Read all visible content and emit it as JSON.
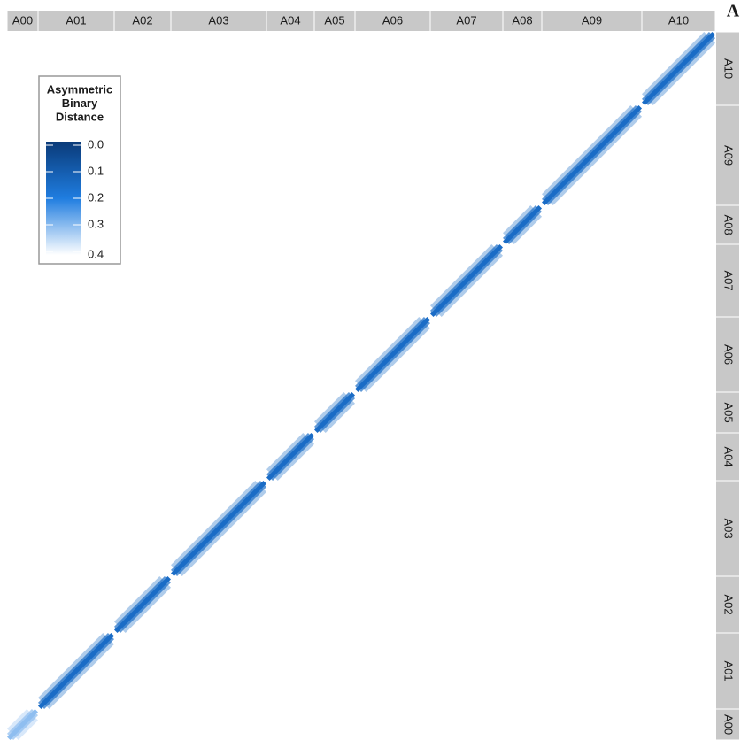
{
  "chart_data": {
    "type": "heatmap",
    "panel_label": "A",
    "groups": [
      "A00",
      "A01",
      "A02",
      "A03",
      "A04",
      "A05",
      "A06",
      "A07",
      "A08",
      "A09",
      "A10"
    ],
    "group_sizes": [
      35,
      86,
      64,
      108,
      54,
      46,
      85,
      82,
      44,
      113,
      83
    ],
    "values": [
      [
        0.3,
        0.4,
        0.4,
        0.4,
        0.4,
        0.4,
        0.4,
        0.4,
        0.4,
        0.4,
        0.4
      ],
      [
        0.4,
        0.15,
        0.4,
        0.4,
        0.4,
        0.4,
        0.4,
        0.4,
        0.4,
        0.4,
        0.4
      ],
      [
        0.4,
        0.4,
        0.15,
        0.4,
        0.4,
        0.4,
        0.4,
        0.4,
        0.4,
        0.4,
        0.4
      ],
      [
        0.4,
        0.4,
        0.4,
        0.15,
        0.4,
        0.4,
        0.4,
        0.4,
        0.4,
        0.4,
        0.4
      ],
      [
        0.4,
        0.4,
        0.4,
        0.4,
        0.15,
        0.4,
        0.4,
        0.4,
        0.4,
        0.4,
        0.4
      ],
      [
        0.4,
        0.4,
        0.4,
        0.4,
        0.4,
        0.15,
        0.4,
        0.4,
        0.4,
        0.4,
        0.4
      ],
      [
        0.4,
        0.4,
        0.4,
        0.4,
        0.4,
        0.4,
        0.15,
        0.4,
        0.4,
        0.4,
        0.4
      ],
      [
        0.4,
        0.4,
        0.4,
        0.4,
        0.4,
        0.4,
        0.4,
        0.15,
        0.4,
        0.4,
        0.4
      ],
      [
        0.4,
        0.4,
        0.4,
        0.4,
        0.4,
        0.4,
        0.4,
        0.4,
        0.15,
        0.4,
        0.4
      ],
      [
        0.4,
        0.4,
        0.4,
        0.4,
        0.4,
        0.4,
        0.4,
        0.4,
        0.4,
        0.15,
        0.4
      ],
      [
        0.4,
        0.4,
        0.4,
        0.4,
        0.4,
        0.4,
        0.4,
        0.4,
        0.4,
        0.4,
        0.15
      ]
    ],
    "legend_title": [
      "Asymmetric",
      "Binary",
      "Distance"
    ],
    "colorscale": {
      "colors": [
        "#0a3a78",
        "#1f7de0",
        "#ffffff"
      ],
      "lim": [
        0,
        0.4
      ],
      "ticks": [
        {
          "value": 0,
          "label": "0.0"
        },
        0.1,
        0.2,
        0.3,
        0.4
      ]
    },
    "legend_position": "top-left"
  }
}
